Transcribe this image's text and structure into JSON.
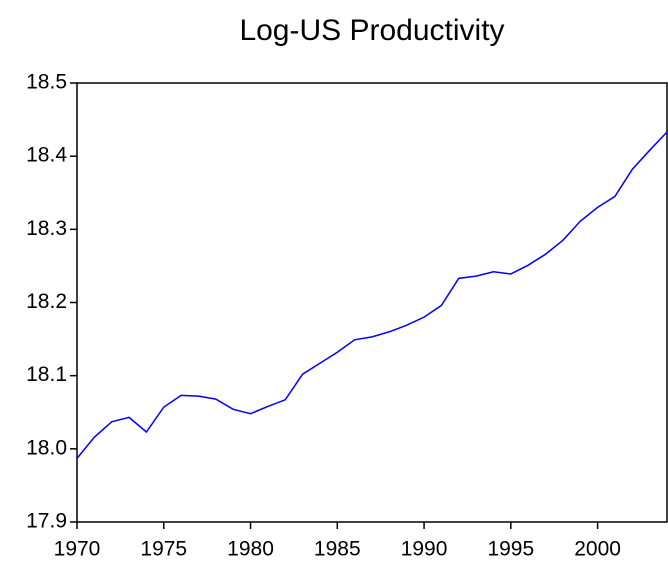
{
  "chart_data": {
    "type": "line",
    "title": "Log-US Productivity",
    "x": [
      1970,
      1971,
      1972,
      1973,
      1974,
      1975,
      1976,
      1977,
      1978,
      1979,
      1980,
      1981,
      1982,
      1983,
      1984,
      1985,
      1986,
      1987,
      1988,
      1989,
      1990,
      1991,
      1992,
      1993,
      1994,
      1995,
      1996,
      1997,
      1998,
      1999,
      2000,
      2001,
      2002,
      2003,
      2004
    ],
    "series": [
      {
        "name": "Log-US Productivity",
        "color": "#0000ff",
        "values": [
          17.987,
          18.016,
          18.037,
          18.043,
          18.023,
          18.057,
          18.073,
          18.072,
          18.068,
          18.054,
          18.048,
          18.058,
          18.067,
          18.102,
          18.117,
          18.132,
          18.149,
          18.153,
          18.16,
          18.169,
          18.18,
          18.196,
          18.233,
          18.236,
          18.242,
          18.239,
          18.251,
          18.266,
          18.285,
          18.311,
          18.33,
          18.345,
          18.382,
          18.408,
          18.433
        ]
      }
    ],
    "xlim": [
      1970,
      2004
    ],
    "xticks": [
      1970,
      1975,
      1980,
      1985,
      1990,
      1995,
      2000
    ],
    "ylim": [
      17.9,
      18.5
    ],
    "yticks": [
      17.9,
      {
        "value": 18.0,
        "label": "18.0"
      },
      18.1,
      18.2,
      18.3,
      18.4,
      18.5
    ]
  }
}
